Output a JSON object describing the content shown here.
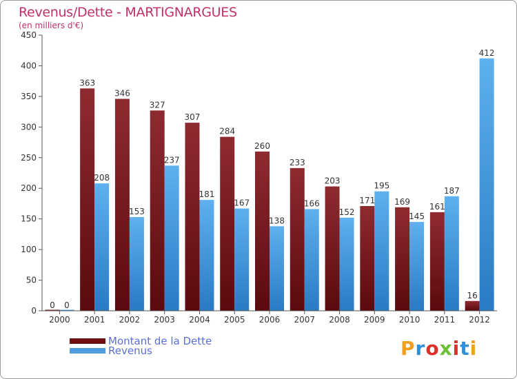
{
  "title": "Revenus/Dette - MARTIGNARGUES",
  "subtitle": "(en milliers d'€)",
  "logo_text": "Proxiti",
  "colors": {
    "dette": "#7a1a1e",
    "revenus": "#4d9de0",
    "title": "#c0306a",
    "legend_text": "#5a6fd6",
    "axis": "#555555",
    "grid": "#dddddd"
  },
  "chart_data": {
    "type": "bar",
    "title": "Revenus/Dette - MARTIGNARGUES",
    "subtitle": "(en milliers d'€)",
    "xlabel": "",
    "ylabel": "",
    "ylim": [
      0,
      450
    ],
    "yticks": [
      0,
      50,
      100,
      150,
      200,
      250,
      300,
      350,
      400,
      450
    ],
    "grid": false,
    "legend_position": "bottom-left",
    "categories": [
      "2000",
      "2001",
      "2002",
      "2003",
      "2004",
      "2005",
      "2006",
      "2007",
      "2008",
      "2009",
      "2010",
      "2011",
      "2012"
    ],
    "series": [
      {
        "name": "Montant de la Dette",
        "values": [
          0,
          363,
          346,
          327,
          307,
          284,
          260,
          233,
          203,
          171,
          169,
          161,
          16
        ]
      },
      {
        "name": "Revenus",
        "values": [
          0,
          208,
          153,
          237,
          181,
          167,
          138,
          166,
          152,
          195,
          145,
          187,
          412
        ]
      }
    ]
  }
}
